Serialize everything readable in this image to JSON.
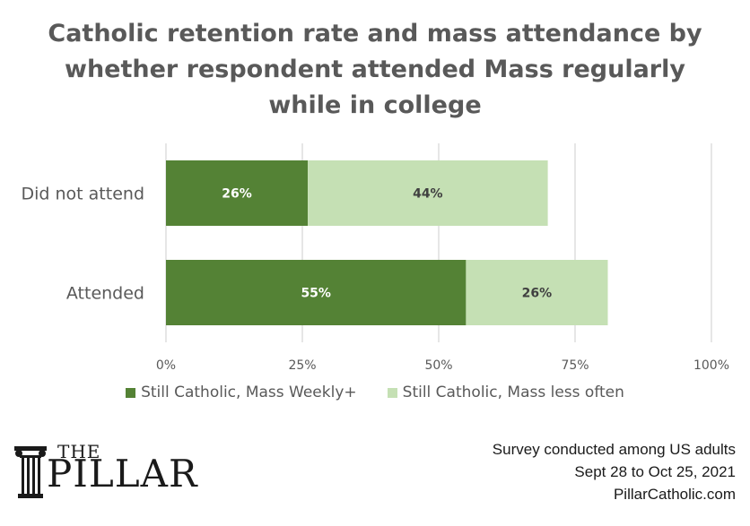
{
  "chart_data": {
    "type": "bar",
    "orientation": "horizontal",
    "stacked": true,
    "title": "Catholic retention rate and mass attendance by whether respondent attended Mass regularly while in college",
    "title_lines": [
      "Catholic retention rate and mass attendance by",
      "whether respondent attended Mass regularly",
      "while in college"
    ],
    "categories": [
      "Did not attend",
      "Attended"
    ],
    "series": [
      {
        "name": "Still Catholic, Mass Weekly+",
        "values": [
          26,
          55
        ],
        "labels": [
          "26%",
          "55%"
        ],
        "color": "#548235",
        "label_color": "#ffffff"
      },
      {
        "name": "Still Catholic, Mass less often",
        "values": [
          44,
          26
        ],
        "labels": [
          "44%",
          "26%"
        ],
        "color": "#c5e0b4",
        "label_color": "#404040"
      }
    ],
    "xlim": [
      0,
      100
    ],
    "x_ticks": [
      0,
      25,
      50,
      75,
      100
    ],
    "x_tick_labels": [
      "0%",
      "25%",
      "50%",
      "75%",
      "100%"
    ],
    "grid": true,
    "legend_position": "bottom"
  },
  "colors": {
    "weekly": "#548235",
    "less_often": "#c5e0b4",
    "grid": "#d9d9d9",
    "text": "#595959"
  },
  "branding": {
    "logo_the": "THE",
    "logo_name": "PILLAR",
    "logo_icon": "column-icon"
  },
  "footer": {
    "line1": "Survey conducted among US adults",
    "line2": "Sept 28 to Oct 25, 2021",
    "line3": "PillarCatholic.com"
  }
}
